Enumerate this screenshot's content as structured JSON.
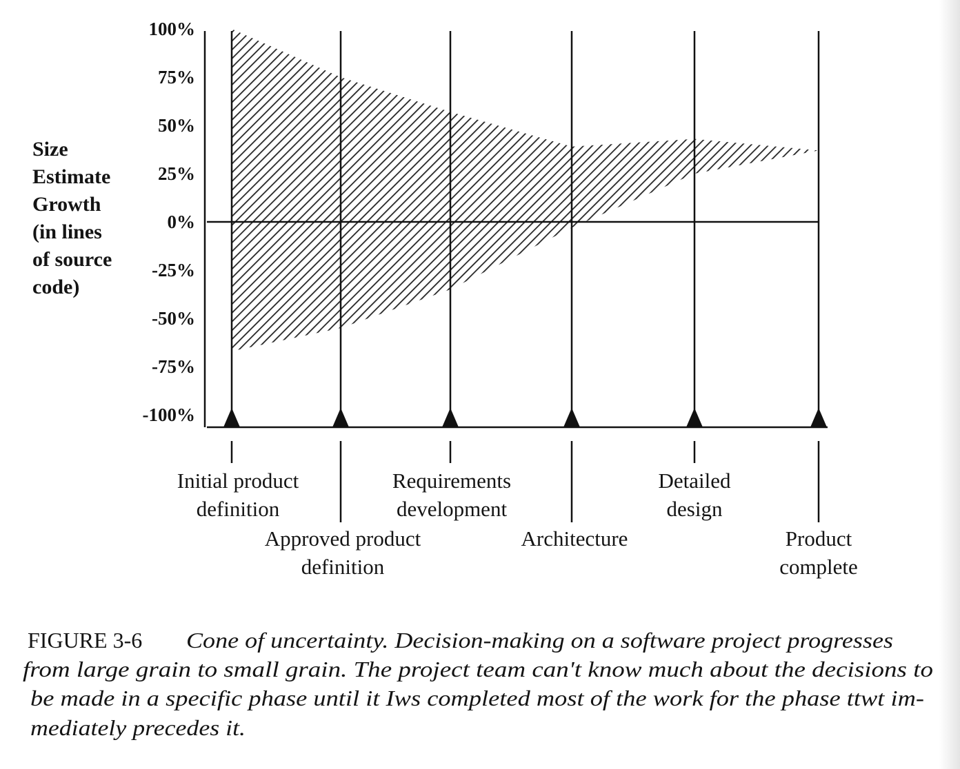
{
  "chart_data": {
    "type": "area",
    "title": "",
    "ylabel_lines": [
      "Size",
      "Estimate",
      "Growth",
      "(in lines",
      "of source",
      "code)"
    ],
    "y_ticks": [
      "100%",
      "75%",
      "50%",
      "25%",
      "0%",
      "-25%",
      "-50%",
      "-75%",
      "-100%"
    ],
    "y_tick_values": [
      100,
      75,
      50,
      25,
      0,
      -25,
      -50,
      -75,
      -100
    ],
    "ylim": [
      -100,
      100
    ],
    "categories": [
      {
        "lines": [
          "Initial product",
          "definition"
        ]
      },
      {
        "lines": [
          "Approved product",
          "definition"
        ]
      },
      {
        "lines": [
          "Requirements",
          "development"
        ]
      },
      {
        "lines": [
          "Architecture"
        ]
      },
      {
        "lines": [
          "Detailed",
          "design"
        ]
      },
      {
        "lines": [
          "Product",
          "complete"
        ]
      }
    ],
    "series": [
      {
        "upper": [
          100,
          75,
          57,
          39,
          43,
          37
        ],
        "lower": [
          -67,
          -55,
          -35,
          -3,
          25,
          37
        ]
      }
    ],
    "fill": "diagonal hatch",
    "zero_line": true,
    "milestone_markers": "triangle"
  },
  "caption": {
    "figure_label": "FIGURE 3-6",
    "lines": [
      "Cone of uncertainty. Decision-making on a software project progresses",
      "from large grain to small grain. The project team can't know much about the decisions to",
      "be made in a specific phase until it Iws completed most of the work for the phase ttwt im-",
      "mediately precedes it."
    ]
  },
  "colors": {
    "ink": "#141414",
    "background": "#ffffff"
  }
}
